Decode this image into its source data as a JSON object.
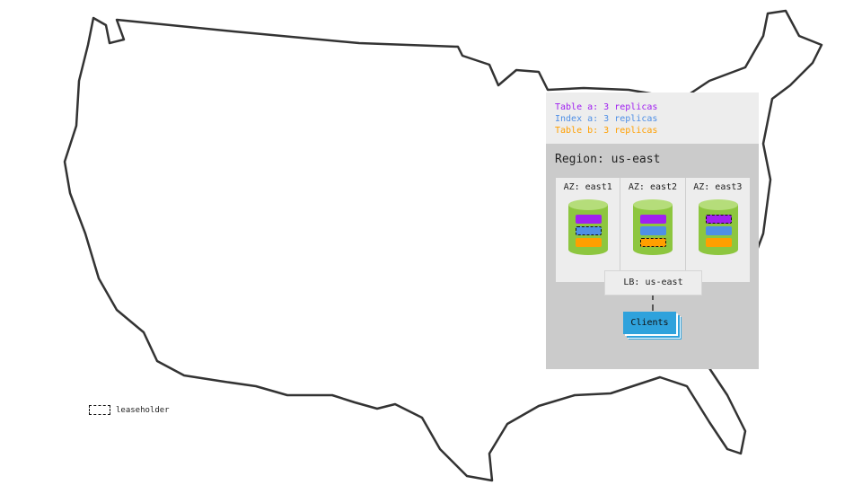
{
  "legend": [
    {
      "label": "Table a: 3 replicas",
      "color": "#a020f0"
    },
    {
      "label": "Index a: 3 replicas",
      "color": "#4f8fe6"
    },
    {
      "label": "Table b: 3 replicas",
      "color": "#ff9f00"
    }
  ],
  "region": "Region: us-east",
  "azs": [
    {
      "label": "AZ: east1",
      "leaseholder": 1
    },
    {
      "label": "AZ: east2",
      "leaseholder": 2
    },
    {
      "label": "AZ: east3",
      "leaseholder": 0
    }
  ],
  "lb": "LB: us-east",
  "clients": "Clients",
  "leaseholder_key": "leaseholder",
  "colors": {
    "cylinder": "#8dc63f",
    "cylinder_top": "#b5dd7a",
    "clients": "#2fa2dc"
  }
}
